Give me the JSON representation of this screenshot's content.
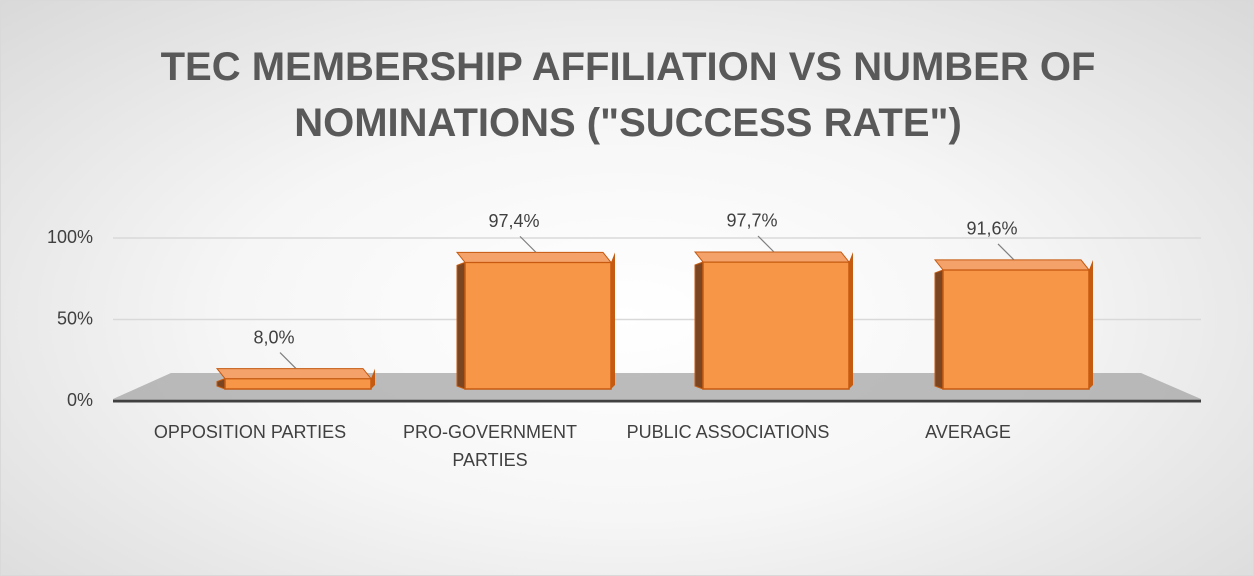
{
  "chart_data": {
    "type": "bar3d",
    "title": "TEC MEMBERSHIP AFFILIATION VS NUMBER OF NOMINATIONS (\"SUCCESS RATE\")",
    "categories": [
      "OPPOSITION PARTIES",
      "PRO-GOVERNMENT PARTIES",
      "PUBLIC ASSOCIATIONS",
      "AVERAGE"
    ],
    "values": [
      8.0,
      97.4,
      97.7,
      91.6
    ],
    "value_labels": [
      "8,0%",
      "97,4%",
      "97,7%",
      "91,6%"
    ],
    "color": "#f79646",
    "ylim": [
      0,
      100
    ],
    "yticks": [
      {
        "value": 0,
        "label": "0%"
      },
      {
        "value": 50,
        "label": "50%"
      },
      {
        "value": 100,
        "label": "100%"
      }
    ],
    "grid": true
  }
}
